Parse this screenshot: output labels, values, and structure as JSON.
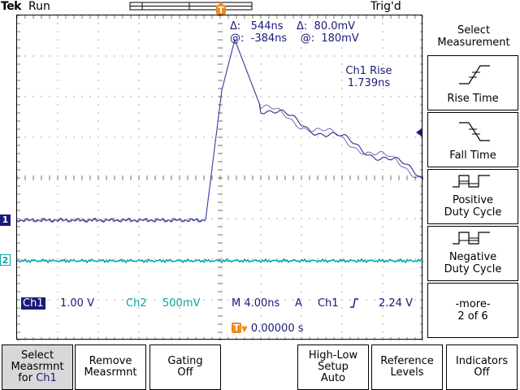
{
  "header": {
    "brand": "Tek",
    "run_state": "Run",
    "trigger_state": "Trig'd"
  },
  "cursor_readout": {
    "line1": "Δ:   544ns    Δ:  80.0mV",
    "line2": "@:  -384ns    @:  180mV"
  },
  "measurement": {
    "name": "Ch1 Rise",
    "value": "1.739ns"
  },
  "status": {
    "ch1_label": "Ch1",
    "ch1_scale": "1.00 V",
    "ch2_label": "Ch2",
    "ch2_scale": "500mV",
    "timebase": "M 4.00ns",
    "trigger_mode": "A",
    "trigger_source": "Ch1",
    "trigger_level": "2.24 V",
    "trigger_position": "0.00000 s"
  },
  "markers": {
    "ch1": "1",
    "ch2": "2",
    "trigger": "T"
  },
  "side_menu": {
    "title_line1": "Select",
    "title_line2": "Measurement",
    "items": [
      {
        "label": "Rise Time",
        "icon": "rise-time-icon"
      },
      {
        "label": "Fall Time",
        "icon": "fall-time-icon"
      },
      {
        "label": "Positive\nDuty Cycle",
        "icon": "positive-duty-icon"
      },
      {
        "label": "Negative\nDuty Cycle",
        "icon": "negative-duty-icon"
      },
      {
        "label": "-more-\n2 of 6"
      }
    ]
  },
  "bottom_menu": {
    "select_line1": "Select\nMeasrmnt\nfor ",
    "select_ch": "Ch1",
    "remove": "Remove\nMeasrmnt",
    "gating": "Gating\nOff",
    "highlow": "High-Low\nSetup\nAuto",
    "reference": "Reference\nLevels",
    "indicators": "Indicators\nOff"
  },
  "colors": {
    "ch1": "#1a1a7a",
    "ch2": "#0aa3a3",
    "trigger": "#f08a1a"
  }
}
